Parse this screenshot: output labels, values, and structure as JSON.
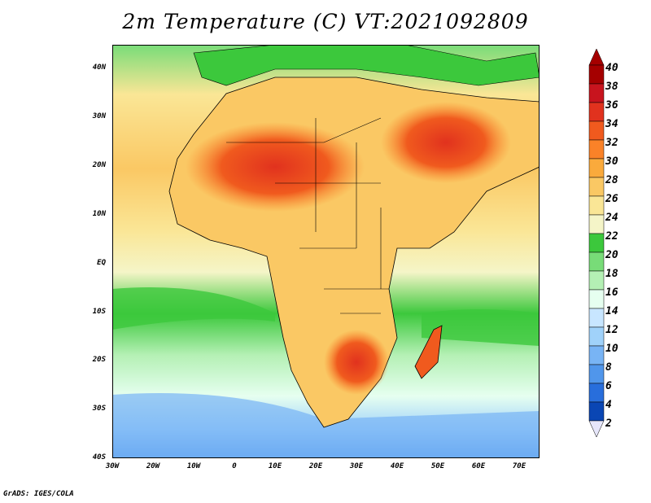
{
  "title": "2m Temperature (C) VT:2021092809",
  "credit": "GrADS: IGES/COLA",
  "map": {
    "lat_labels": [
      "40N",
      "30N",
      "20N",
      "10N",
      "EQ",
      "10S",
      "20S",
      "30S",
      "40S"
    ],
    "lon_labels": [
      "30W",
      "20W",
      "10W",
      "0",
      "10E",
      "20E",
      "30E",
      "40E",
      "50E",
      "60E",
      "70E"
    ]
  },
  "colorbar": {
    "labels": [
      "40",
      "38",
      "36",
      "34",
      "32",
      "30",
      "28",
      "26",
      "24",
      "22",
      "20",
      "18",
      "16",
      "14",
      "12",
      "10",
      "8",
      "6",
      "4",
      "2"
    ],
    "colors": [
      "#a50000",
      "#c8141e",
      "#e1321e",
      "#f05a1e",
      "#fa8228",
      "#faaa3c",
      "#fac864",
      "#fae696",
      "#f5f5c8",
      "#3cc83c",
      "#78dc78",
      "#b4f0b4",
      "#e6fff0",
      "#c8e6ff",
      "#a0d2fa",
      "#78b4f5",
      "#5096eb",
      "#286edc",
      "#0a46b4",
      "#002080"
    ],
    "bottom_color": "#e6e6fa"
  }
}
